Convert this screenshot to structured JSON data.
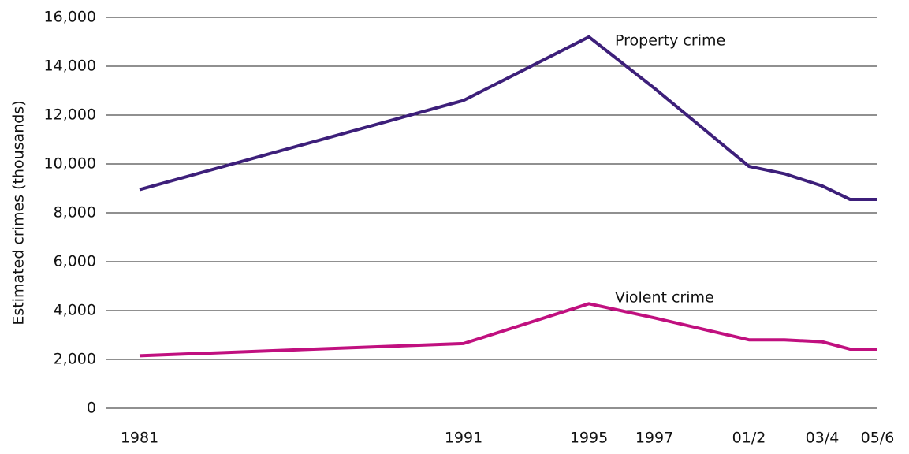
{
  "chart_data": {
    "type": "line",
    "y_label": "Estimated crimes (thousands)",
    "categories": [
      "1981",
      "1991",
      "1995",
      "1997",
      "01/2",
      null,
      "03/4",
      null,
      "05/6"
    ],
    "series": [
      {
        "name": "Property crime",
        "color": "#3d1f7a",
        "values": [
          8950,
          12600,
          15200,
          13100,
          9900,
          9600,
          9100,
          8550,
          8550
        ]
      },
      {
        "name": "Violent crime",
        "color": "#c0107f",
        "values": [
          2150,
          2650,
          4280,
          3700,
          2800,
          2800,
          2720,
          2420,
          2420
        ]
      }
    ],
    "ylim": [
      0,
      16000
    ],
    "yticks": [
      0,
      {
        "value": 2000,
        "label": "2,000"
      },
      {
        "value": 4000,
        "label": "4,000"
      },
      {
        "value": 6000,
        "label": "6,000"
      },
      {
        "value": 8000,
        "label": "8,000"
      },
      {
        "value": 10000,
        "label": "10,000"
      },
      {
        "value": 12000,
        "label": "12,000"
      },
      {
        "value": 14000,
        "label": "14,000"
      },
      {
        "value": 16000,
        "label": "16,000"
      }
    ],
    "grid": true
  }
}
